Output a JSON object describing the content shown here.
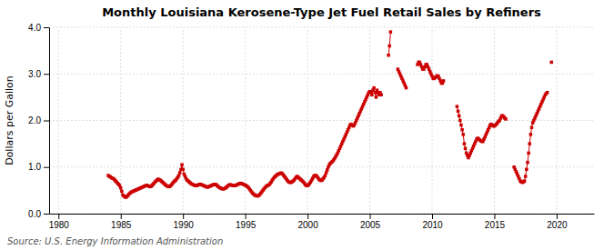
{
  "chart_data": {
    "type": "line",
    "title": "Monthly Louisiana Kerosene-Type Jet Fuel Retail Sales by Refiners",
    "ylabel": "Dollars per Gallon",
    "annotations": [
      "Source: U.S. Energy Information Administration"
    ],
    "color": "#cc0000",
    "marker": "square",
    "grid": true,
    "xlim": [
      1979.25,
      2023.0
    ],
    "ylim": [
      0.0,
      4.0
    ],
    "xticks": [
      1980,
      1985,
      1990,
      1995,
      2000,
      2005,
      2010,
      2015,
      2020
    ],
    "yticks": [
      {
        "value": 0.0,
        "label": "0.0"
      },
      {
        "value": 1.0,
        "label": "1.0"
      },
      {
        "value": 2.0,
        "label": "2.0"
      },
      {
        "value": 3.0,
        "label": "3.0"
      },
      {
        "value": 4.0,
        "label": "4.0"
      }
    ],
    "x": [
      1984,
      1984.0833333333333,
      1984.1666666666667,
      1984.25,
      1984.3333333333333,
      1984.4166666666667,
      1984.5,
      1984.5833333333333,
      1984.6666666666667,
      1984.75,
      1984.8333333333333,
      1984.9166666666667,
      1985,
      1985.0833333333333,
      1985.1666666666667,
      1985.25,
      1985.3333333333333,
      1985.4166666666667,
      1985.5,
      1985.5833333333333,
      1985.6666666666667,
      1985.75,
      1985.8333333333333,
      1985.9166666666667,
      1986,
      1986.0833333333333,
      1986.1666666666667,
      1986.25,
      1986.3333333333333,
      1986.4166666666667,
      1986.5,
      1986.5833333333333,
      1986.6666666666667,
      1986.75,
      1986.8333333333333,
      1986.9166666666667,
      1987,
      1987.0833333333333,
      1987.1666666666667,
      1987.25,
      1987.3333333333333,
      1987.4166666666667,
      1987.5,
      1987.5833333333333,
      1987.6666666666667,
      1987.75,
      1987.8333333333333,
      1987.9166666666667,
      1988,
      1988.0833333333333,
      1988.1666666666667,
      1988.25,
      1988.3333333333333,
      1988.4166666666667,
      1988.5,
      1988.5833333333333,
      1988.6666666666667,
      1988.75,
      1988.8333333333333,
      1988.9166666666667,
      1989,
      1989.0833333333333,
      1989.1666666666667,
      1989.25,
      1989.3333333333333,
      1989.4166666666667,
      1989.5,
      1989.5833333333333,
      1989.6666666666667,
      1989.75,
      1989.8333333333333,
      1989.9166666666667,
      1990,
      1990.0833333333333,
      1990.1666666666667,
      1990.25,
      1990.3333333333333,
      1990.4166666666667,
      1990.5,
      1990.5833333333333,
      1990.6666666666667,
      1990.75,
      1990.8333333333333,
      1990.9166666666667,
      1991,
      1991.0833333333333,
      1991.1666666666667,
      1991.25,
      1991.3333333333333,
      1991.4166666666667,
      1991.5,
      1991.5833333333333,
      1991.6666666666667,
      1991.75,
      1991.8333333333333,
      1991.9166666666667,
      1992,
      1992.0833333333333,
      1992.1666666666667,
      1992.25,
      1992.3333333333333,
      1992.4166666666667,
      1992.5,
      1992.5833333333333,
      1992.6666666666667,
      1992.75,
      1992.8333333333333,
      1992.9166666666667,
      1993,
      1993.0833333333333,
      1993.1666666666667,
      1993.25,
      1993.3333333333333,
      1993.4166666666667,
      1993.5,
      1993.5833333333333,
      1993.6666666666667,
      1993.75,
      1993.8333333333333,
      1993.9166666666667,
      1994,
      1994.0833333333333,
      1994.1666666666667,
      1994.25,
      1994.3333333333333,
      1994.4166666666667,
      1994.5,
      1994.5833333333333,
      1994.6666666666667,
      1994.75,
      1994.8333333333333,
      1994.9166666666667,
      1995,
      1995.0833333333333,
      1995.1666666666667,
      1995.25,
      1995.3333333333333,
      1995.4166666666667,
      1995.5,
      1995.5833333333333,
      1995.6666666666667,
      1995.75,
      1995.8333333333333,
      1995.9166666666667,
      1996,
      1996.0833333333333,
      1996.1666666666667,
      1996.25,
      1996.3333333333333,
      1996.4166666666667,
      1996.5,
      1996.5833333333333,
      1996.6666666666667,
      1996.75,
      1996.8333333333333,
      1996.9166666666667,
      1997,
      1997.0833333333333,
      1997.1666666666667,
      1997.25,
      1997.3333333333333,
      1997.4166666666667,
      1997.5,
      1997.5833333333333,
      1997.6666666666667,
      1997.75,
      1997.8333333333333,
      1997.9166666666667,
      1998,
      1998.0833333333333,
      1998.1666666666667,
      1998.25,
      1998.3333333333333,
      1998.4166666666667,
      1998.5,
      1998.5833333333333,
      1998.6666666666667,
      1998.75,
      1998.8333333333333,
      1998.9166666666667,
      1999,
      1999.0833333333333,
      1999.1666666666667,
      1999.25,
      1999.3333333333333,
      1999.4166666666667,
      1999.5,
      1999.5833333333333,
      1999.6666666666667,
      1999.75,
      1999.8333333333333,
      1999.9166666666667,
      2000,
      2000.0833333333333,
      2000.1666666666667,
      2000.25,
      2000.3333333333333,
      2000.4166666666667,
      2000.5,
      2000.5833333333333,
      2000.6666666666667,
      2000.75,
      2000.8333333333333,
      2000.9166666666667,
      2001,
      2001.0833333333333,
      2001.1666666666667,
      2001.25,
      2001.3333333333333,
      2001.4166666666667,
      2001.5,
      2001.5833333333333,
      2001.6666666666667,
      2001.75,
      2001.8333333333333,
      2001.9166666666667,
      2002,
      2002.0833333333333,
      2002.1666666666667,
      2002.25,
      2002.3333333333333,
      2002.4166666666667,
      2002.5,
      2002.5833333333333,
      2002.6666666666667,
      2002.75,
      2002.8333333333333,
      2002.9166666666667,
      2003,
      2003.0833333333333,
      2003.1666666666667,
      2003.25,
      2003.3333333333333,
      2003.4166666666667,
      2003.5,
      2003.5833333333333,
      2003.6666666666667,
      2003.75,
      2003.8333333333333,
      2003.9166666666667,
      2004,
      2004.0833333333333,
      2004.1666666666667,
      2004.25,
      2004.3333333333333,
      2004.4166666666667,
      2004.5,
      2004.5833333333333,
      2004.6666666666667,
      2004.75,
      2004.8333333333333,
      2004.9166666666667,
      2005,
      2005.0833333333333,
      2005.1666666666667,
      2005.25,
      2005.3333333333333,
      2005.4166666666667,
      2005.5,
      2005.5833333333333,
      2005.6666666666667,
      2005.75,
      2005.8333333333333,
      2005.9166666666667,
      2006,
      2006.0833333333333,
      2006.1666666666667,
      2006.25,
      2006.3333333333333,
      2006.4166666666667,
      2006.5,
      2006.5833333333333,
      2006.6666666666667,
      2006.75,
      2006.8333333333333,
      2006.9166666666667,
      2007,
      2007.0833333333333,
      2007.1666666666667,
      2007.25,
      2007.3333333333333,
      2007.4166666666667,
      2007.5,
      2007.5833333333333,
      2007.6666666666667,
      2007.75,
      2007.8333333333333,
      2007.9166666666667,
      2008,
      2008.0833333333333,
      2008.1666666666667,
      2008.25,
      2008.3333333333333,
      2008.4166666666667,
      2008.5,
      2008.5833333333333,
      2008.6666666666667,
      2008.75,
      2008.8333333333333,
      2008.9166666666667,
      2009,
      2009.0833333333333,
      2009.1666666666667,
      2009.25,
      2009.3333333333333,
      2009.4166666666667,
      2009.5,
      2009.5833333333333,
      2009.6666666666667,
      2009.75,
      2009.8333333333333,
      2009.9166666666667,
      2010,
      2010.0833333333333,
      2010.1666666666667,
      2010.25,
      2010.3333333333333,
      2010.4166666666667,
      2010.5,
      2010.5833333333333,
      2010.6666666666667,
      2010.75,
      2010.8333333333333,
      2010.9166666666667,
      2011,
      2011.0833333333333,
      2011.1666666666667,
      2011.25,
      2011.3333333333333,
      2011.4166666666667,
      2011.5,
      2011.5833333333333,
      2011.6666666666667,
      2011.75,
      2011.8333333333333,
      2011.9166666666667,
      2012,
      2012.0833333333333,
      2012.1666666666667,
      2012.25,
      2012.3333333333333,
      2012.4166666666667,
      2012.5,
      2012.5833333333333,
      2012.6666666666667,
      2012.75,
      2012.8333333333333,
      2012.9166666666667,
      2013,
      2013.0833333333333,
      2013.1666666666667,
      2013.25,
      2013.3333333333333,
      2013.4166666666667,
      2013.5,
      2013.5833333333333,
      2013.6666666666667,
      2013.75,
      2013.8333333333333,
      2013.9166666666667,
      2014,
      2014.0833333333333,
      2014.1666666666667,
      2014.25,
      2014.3333333333333,
      2014.4166666666667,
      2014.5,
      2014.5833333333333,
      2014.6666666666667,
      2014.75,
      2014.8333333333333,
      2014.9166666666667,
      2015,
      2015.0833333333333,
      2015.1666666666667,
      2015.25,
      2015.3333333333333,
      2015.4166666666667,
      2015.5,
      2015.5833333333333,
      2015.6666666666667,
      2015.75,
      2015.8333333333333,
      2015.9166666666667,
      2016,
      2016.0833333333333,
      2016.1666666666667,
      2016.25,
      2016.3333333333333,
      2016.4166666666667,
      2016.5,
      2016.5833333333333,
      2016.6666666666667,
      2016.75,
      2016.8333333333333,
      2016.9166666666667,
      2017,
      2017.0833333333333,
      2017.1666666666667,
      2017.25,
      2017.3333333333333,
      2017.4166666666667,
      2017.5,
      2017.5833333333333,
      2017.6666666666667,
      2017.75,
      2017.8333333333333,
      2017.9166666666667,
      2018,
      2018.0833333333333,
      2018.1666666666667,
      2018.25,
      2018.3333333333333,
      2018.4166666666667,
      2018.5,
      2018.5833333333333,
      2018.6666666666667,
      2018.75,
      2018.8333333333333,
      2018.9166666666667,
      2019,
      2019.0833333333333,
      2019.1666666666667,
      2019.25,
      2019.3333333333333,
      2019.4166666666667,
      2019.5,
      2019.5833333333333
    ],
    "values": [
      0.82,
      0.8,
      0.79,
      0.77,
      0.76,
      0.75,
      0.73,
      0.7,
      0.68,
      0.65,
      0.63,
      0.6,
      0.55,
      0.48,
      0.4,
      0.38,
      0.36,
      0.35,
      0.37,
      0.39,
      0.42,
      0.44,
      0.46,
      0.47,
      0.48,
      0.49,
      0.5,
      0.51,
      0.52,
      0.53,
      0.54,
      0.55,
      0.56,
      0.57,
      0.58,
      0.59,
      0.6,
      0.61,
      0.6,
      0.59,
      0.58,
      0.58,
      0.6,
      0.63,
      0.65,
      0.68,
      0.7,
      0.72,
      0.74,
      0.73,
      0.72,
      0.7,
      0.68,
      0.66,
      0.64,
      0.62,
      0.6,
      0.59,
      0.58,
      0.58,
      0.6,
      0.62,
      0.65,
      0.68,
      0.7,
      0.72,
      0.75,
      0.78,
      0.82,
      0.88,
      0.95,
      1.05,
      0.95,
      0.85,
      0.8,
      0.75,
      0.72,
      0.7,
      0.68,
      0.66,
      0.64,
      0.63,
      0.62,
      0.61,
      0.6,
      0.6,
      0.61,
      0.62,
      0.63,
      0.63,
      0.62,
      0.61,
      0.6,
      0.59,
      0.58,
      0.57,
      0.57,
      0.58,
      0.59,
      0.6,
      0.61,
      0.62,
      0.63,
      0.63,
      0.62,
      0.6,
      0.58,
      0.56,
      0.55,
      0.54,
      0.53,
      0.53,
      0.54,
      0.55,
      0.57,
      0.59,
      0.61,
      0.62,
      0.62,
      0.61,
      0.6,
      0.6,
      0.6,
      0.61,
      0.62,
      0.63,
      0.64,
      0.65,
      0.65,
      0.64,
      0.63,
      0.62,
      0.61,
      0.6,
      0.58,
      0.56,
      0.53,
      0.5,
      0.47,
      0.44,
      0.42,
      0.4,
      0.39,
      0.38,
      0.38,
      0.39,
      0.41,
      0.44,
      0.47,
      0.5,
      0.53,
      0.56,
      0.58,
      0.6,
      0.61,
      0.62,
      0.65,
      0.68,
      0.72,
      0.75,
      0.78,
      0.8,
      0.82,
      0.84,
      0.85,
      0.86,
      0.87,
      0.87,
      0.85,
      0.82,
      0.79,
      0.76,
      0.73,
      0.7,
      0.68,
      0.67,
      0.67,
      0.68,
      0.7,
      0.72,
      0.75,
      0.78,
      0.8,
      0.78,
      0.76,
      0.74,
      0.72,
      0.7,
      0.68,
      0.65,
      0.62,
      0.6,
      0.6,
      0.62,
      0.65,
      0.68,
      0.72,
      0.76,
      0.8,
      0.82,
      0.82,
      0.8,
      0.77,
      0.74,
      0.72,
      0.71,
      0.72,
      0.75,
      0.78,
      0.82,
      0.88,
      0.94,
      1.0,
      1.05,
      1.08,
      1.1,
      1.12,
      1.15,
      1.18,
      1.22,
      1.26,
      1.3,
      1.35,
      1.4,
      1.45,
      1.5,
      1.55,
      1.6,
      1.65,
      1.7,
      1.75,
      1.8,
      1.85,
      1.9,
      1.92,
      1.9,
      1.88,
      1.9,
      1.95,
      2.0,
      2.05,
      2.1,
      2.15,
      2.2,
      2.25,
      2.3,
      2.35,
      2.4,
      2.45,
      2.5,
      2.55,
      2.6,
      2.62,
      2.6,
      2.55,
      2.65,
      2.7,
      2.6,
      2.5,
      2.65,
      2.6,
      2.55,
      2.6,
      2.55,
      null,
      null,
      null,
      null,
      null,
      null,
      3.4,
      3.6,
      3.9,
      null,
      null,
      null,
      null,
      null,
      null,
      3.1,
      3.05,
      3.0,
      2.95,
      2.9,
      2.85,
      2.8,
      2.75,
      2.7,
      null,
      null,
      null,
      null,
      null,
      null,
      null,
      null,
      null,
      null,
      3.2,
      3.25,
      3.25,
      3.2,
      3.15,
      3.1,
      3.1,
      3.15,
      3.2,
      3.2,
      3.15,
      3.1,
      3.05,
      3.0,
      2.95,
      2.9,
      2.9,
      2.92,
      2.94,
      2.96,
      2.95,
      2.9,
      2.85,
      2.8,
      2.8,
      2.85,
      null,
      null,
      null,
      null,
      null,
      null,
      null,
      null,
      null,
      null,
      null,
      null,
      2.3,
      2.2,
      2.1,
      2.0,
      1.9,
      1.8,
      1.7,
      1.5,
      1.4,
      1.3,
      1.25,
      1.2,
      1.25,
      1.3,
      1.35,
      1.4,
      1.45,
      1.5,
      1.55,
      1.6,
      1.62,
      1.6,
      1.58,
      1.56,
      1.55,
      1.55,
      1.6,
      1.65,
      1.7,
      1.75,
      1.8,
      1.85,
      1.9,
      1.92,
      1.9,
      1.88,
      1.88,
      1.9,
      1.92,
      1.95,
      1.98,
      2.0,
      2.05,
      2.1,
      2.1,
      2.08,
      2.05,
      2.03,
      null,
      null,
      null,
      null,
      null,
      null,
      null,
      1.0,
      0.95,
      0.9,
      0.85,
      0.8,
      0.75,
      0.7,
      0.68,
      0.67,
      0.68,
      0.7,
      0.8,
      0.95,
      1.1,
      1.3,
      1.5,
      1.7,
      1.85,
      1.95,
      2.0,
      2.05,
      2.1,
      2.15,
      2.2,
      2.25,
      2.3,
      2.35,
      2.4,
      2.45,
      2.5,
      2.55,
      2.58,
      2.6,
      null,
      null,
      null,
      3.25
    ]
  }
}
